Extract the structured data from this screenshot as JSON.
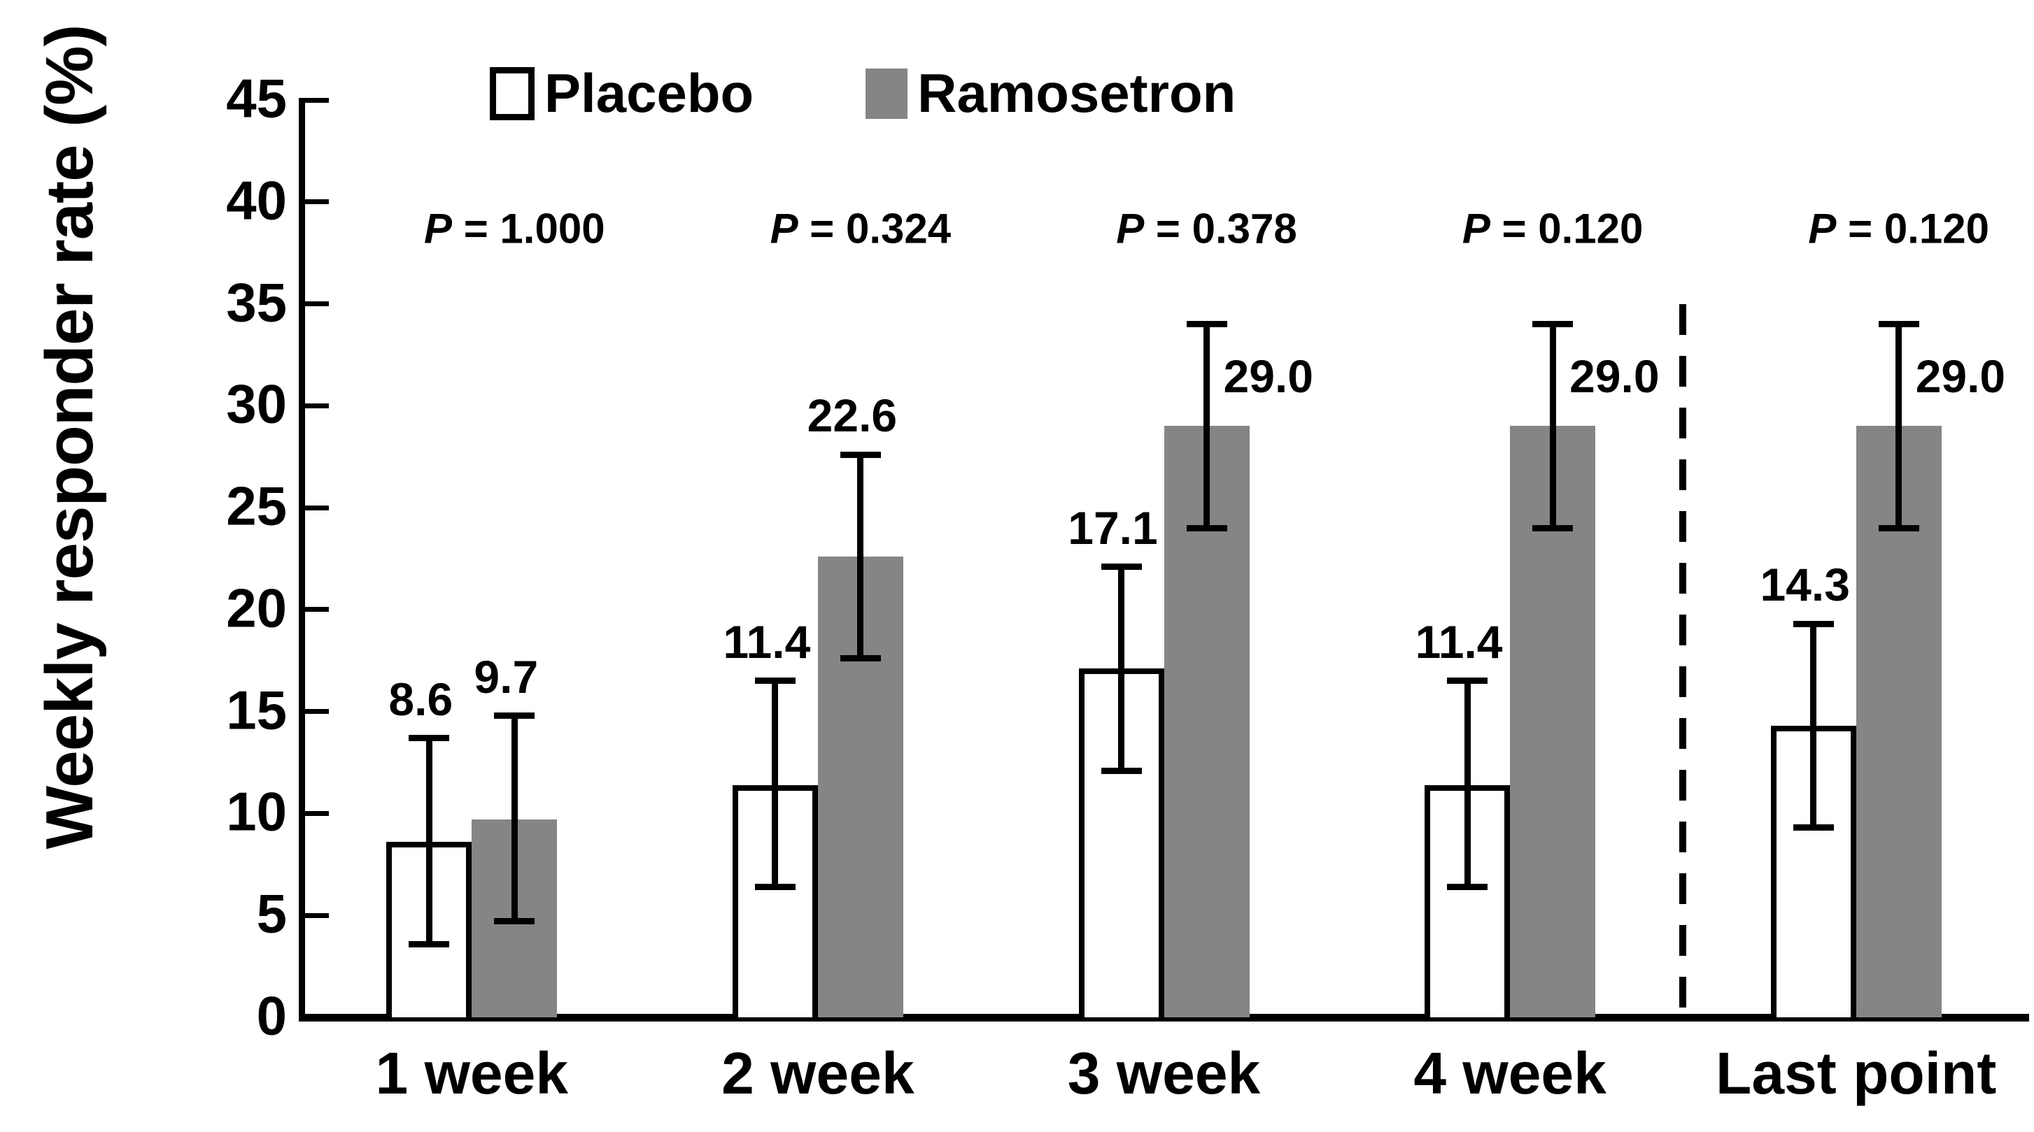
{
  "figure": {
    "background": "#ffffff",
    "text_color": "#000000",
    "axis_color": "#000000"
  },
  "chart_data": {
    "type": "bar",
    "title": "",
    "ylabel": "Weekly responder rate (%)",
    "xlabel": "",
    "ylim": [
      0,
      45
    ],
    "ytick_step": 5,
    "ytick_labels": [
      "0",
      "5",
      "10",
      "15",
      "20",
      "25",
      "30",
      "35",
      "40",
      "45"
    ],
    "grid": false,
    "legend_position": "top",
    "error_bars": true,
    "bar_border_color": "#000000",
    "categories": [
      "1 week",
      "2 week",
      "3 week",
      "4 week",
      "Last point"
    ],
    "series": [
      {
        "name": "Placebo",
        "fill": "#ffffff",
        "values": [
          8.6,
          11.4,
          17.1,
          11.4,
          14.3
        ],
        "error_low": [
          3.6,
          6.4,
          12.1,
          6.4,
          9.3
        ],
        "error_high": [
          13.7,
          16.5,
          22.1,
          16.5,
          19.3
        ],
        "label_position": [
          "above",
          "above",
          "above",
          "above",
          "above"
        ]
      },
      {
        "name": "Ramosetron",
        "fill": "#858585",
        "values": [
          9.7,
          22.6,
          29.0,
          29.0,
          29.0
        ],
        "error_low": [
          4.7,
          17.6,
          24.0,
          24.0,
          24.0
        ],
        "error_high": [
          14.8,
          27.6,
          34.0,
          34.0,
          34.0
        ],
        "label_position": [
          "above",
          "above",
          "right",
          "right",
          "right"
        ]
      }
    ],
    "p_values": [
      "P = 1.000",
      "P = 0.324",
      "P = 0.378",
      "P = 0.120",
      "P = 0.120"
    ],
    "separator_after_category_index": 3
  }
}
